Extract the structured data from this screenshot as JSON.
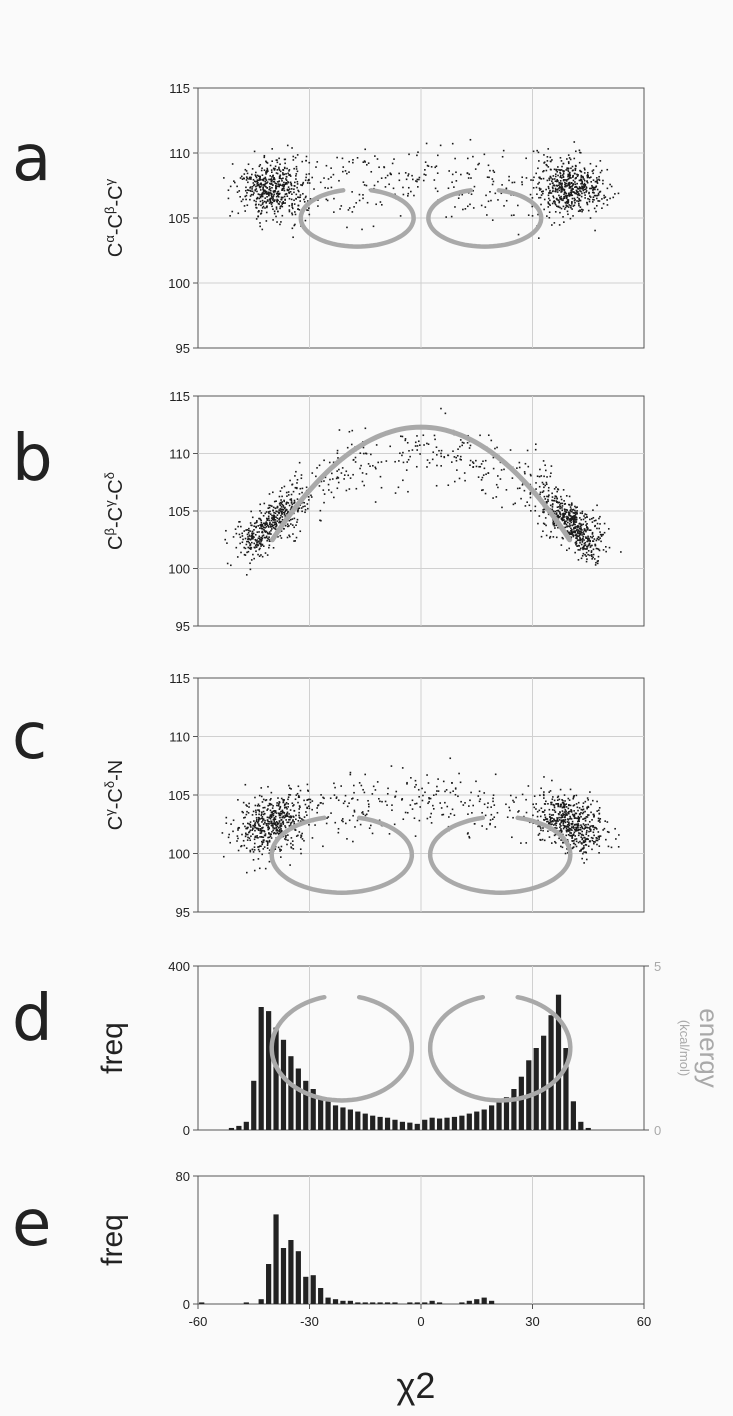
{
  "xlabel": "χ2",
  "x_ticks": [
    "-60",
    "-30",
    "0",
    "30",
    "60"
  ],
  "colors": {
    "points": "#1a1a1a",
    "energy_curve": "#a9a9a9",
    "bars": "#222222",
    "grid": "#d0d0d0"
  },
  "chart_data": [
    {
      "panel": "a",
      "type": "scatter",
      "ylabel": [
        "C",
        "α",
        "-C",
        "β",
        "-C",
        "γ"
      ],
      "ylim": [
        95,
        115
      ],
      "yticks": [
        "115",
        "110",
        "105",
        "100",
        "95"
      ],
      "xlim": [
        -60,
        60
      ],
      "grid": true,
      "energy_curve": {
        "shape": "lemniscate",
        "x": [
          -33,
          33
        ],
        "y_center": 105,
        "y_peak": 108.3,
        "y_dip": 103.9
      }
    },
    {
      "panel": "b",
      "type": "scatter",
      "ylabel": [
        "C",
        "β",
        "-C",
        "γ",
        "-C",
        "δ"
      ],
      "ylim": [
        95,
        115
      ],
      "yticks": [
        "115",
        "110",
        "105",
        "100",
        "95"
      ],
      "xlim": [
        -60,
        60
      ],
      "grid": true,
      "energy_curve": {
        "shape": "arch",
        "x": [
          -40,
          40
        ],
        "y_end": 102.5,
        "y_peak": 112.3
      }
    },
    {
      "panel": "c",
      "type": "scatter",
      "ylabel": [
        "C",
        "γ",
        "-C",
        "δ",
        "-N"
      ],
      "ylim": [
        95,
        115
      ],
      "yticks": [
        "115",
        "110",
        "105",
        "100",
        "95"
      ],
      "xlim": [
        -60,
        60
      ],
      "grid": true,
      "energy_curve": {
        "shape": "lemniscate",
        "x": [
          -41,
          41
        ],
        "y_center": 99.9,
        "y_peak": 103.9,
        "y_dip": 97.4
      }
    },
    {
      "panel": "d",
      "type": "bar",
      "ylabel": "freq",
      "y2label": "energy",
      "y2unit": "(kcal/mol)",
      "ylim": [
        0,
        400
      ],
      "yticks": [
        "400",
        "0"
      ],
      "y2ticks": [
        "5",
        "0"
      ],
      "xlim": [
        -60,
        60
      ],
      "grid": true,
      "x": [
        -51,
        -49,
        -47,
        -45,
        -43,
        -41,
        -39,
        -37,
        -35,
        -33,
        -31,
        -29,
        -27,
        -25,
        -23,
        -21,
        -19,
        -17,
        -15,
        -13,
        -11,
        -9,
        -7,
        -5,
        -3,
        -1,
        1,
        3,
        5,
        7,
        9,
        11,
        13,
        15,
        17,
        19,
        21,
        23,
        25,
        27,
        29,
        31,
        33,
        35,
        37,
        39,
        41,
        43,
        45,
        47,
        49,
        51
      ],
      "values": [
        5,
        10,
        20,
        120,
        300,
        290,
        250,
        220,
        180,
        150,
        120,
        100,
        80,
        70,
        60,
        55,
        50,
        45,
        40,
        35,
        32,
        30,
        25,
        20,
        18,
        15,
        25,
        30,
        28,
        30,
        32,
        35,
        40,
        45,
        50,
        60,
        70,
        80,
        100,
        130,
        170,
        200,
        230,
        280,
        330,
        200,
        70,
        20,
        5,
        0,
        0,
        0
      ],
      "energy_curve": {
        "shape": "lemniscate",
        "x": [
          -41,
          41
        ],
        "y_center": 2.5,
        "y_peak": 4.1,
        "y_dip": 0.9
      }
    },
    {
      "panel": "e",
      "type": "bar",
      "ylabel": "freq",
      "ylim": [
        0,
        80
      ],
      "yticks": [
        "80",
        "0"
      ],
      "xlim": [
        -60,
        60
      ],
      "grid": true,
      "x": [
        -59,
        -57,
        -55,
        -53,
        -51,
        -49,
        -47,
        -45,
        -43,
        -41,
        -39,
        -37,
        -35,
        -33,
        -31,
        -29,
        -27,
        -25,
        -23,
        -21,
        -19,
        -17,
        -15,
        -13,
        -11,
        -9,
        -7,
        -5,
        -3,
        -1,
        1,
        3,
        5,
        7,
        9,
        11,
        13,
        15,
        17,
        19,
        21,
        23,
        25,
        27,
        29,
        31,
        33,
        35,
        37,
        39,
        41,
        43,
        45,
        47,
        49
      ],
      "values": [
        1,
        0,
        0,
        0,
        0,
        0,
        1,
        0,
        3,
        25,
        56,
        35,
        40,
        33,
        17,
        18,
        10,
        4,
        3,
        2,
        2,
        1,
        1,
        1,
        1,
        1,
        1,
        0,
        1,
        1,
        1,
        2,
        1,
        0,
        0,
        1,
        2,
        3,
        4,
        2,
        0,
        0,
        0,
        0,
        0,
        0,
        0,
        0,
        0,
        0,
        0,
        0,
        0,
        0,
        0
      ]
    }
  ]
}
